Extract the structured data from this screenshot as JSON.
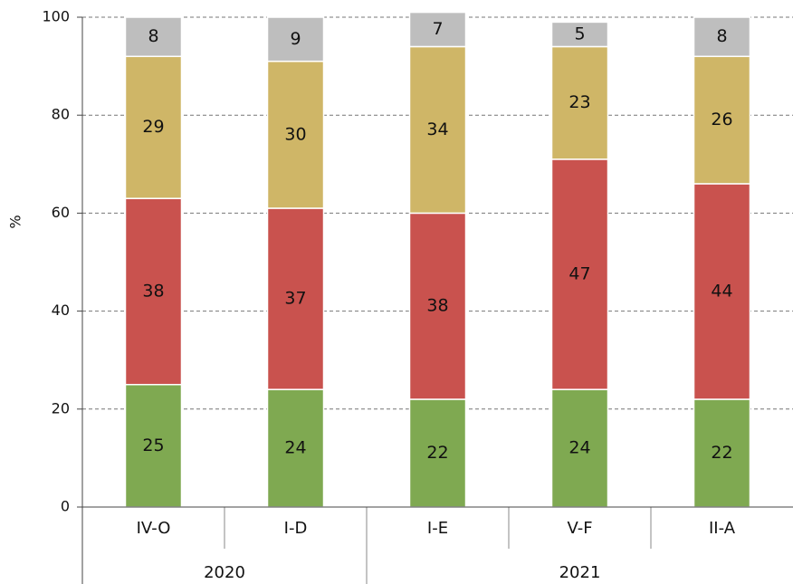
{
  "chart_data": {
    "type": "stacked_bar",
    "y_label": "%",
    "groups": [
      {
        "name": "2020",
        "categories": [
          "IV-O",
          "I-D"
        ]
      },
      {
        "name": "2021",
        "categories": [
          "I-E",
          "V-F",
          "II-A"
        ]
      }
    ],
    "series": [
      {
        "color": "#7fa951",
        "values": [
          25,
          24,
          22,
          24,
          22
        ]
      },
      {
        "color": "#c9524e",
        "values": [
          38,
          37,
          38,
          47,
          44
        ]
      },
      {
        "color": "#cfb667",
        "values": [
          29,
          30,
          34,
          23,
          26
        ]
      },
      {
        "color": "#bebebe",
        "values": [
          8,
          9,
          7,
          5,
          8
        ]
      }
    ],
    "ylim": [
      0,
      100
    ],
    "yticks": [
      0,
      20,
      40,
      60,
      80,
      100
    ],
    "grid": true
  }
}
